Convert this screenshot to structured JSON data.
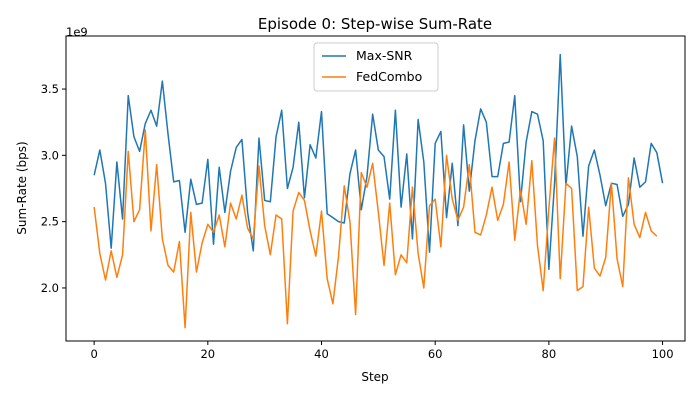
{
  "chart_data": {
    "type": "line",
    "title": "Episode 0: Step-wise Sum-Rate",
    "xlabel": "Step",
    "ylabel": "Sum-Rate (bps)",
    "y_multiplier_label": "1e9",
    "xlim": [
      -4.95,
      103.95
    ],
    "ylim": [
      1.6,
      3.9
    ],
    "x_ticks": [
      0,
      20,
      40,
      60,
      80,
      100
    ],
    "x_tick_labels": [
      "0",
      "20",
      "40",
      "60",
      "80",
      "100"
    ],
    "y_ticks": [
      2.0,
      2.5,
      3.0,
      3.5
    ],
    "y_tick_labels": [
      "2.0",
      "2.5",
      "3.0",
      "3.5"
    ],
    "grid": false,
    "legend_position": "top-center",
    "series": [
      {
        "name": "Max-SNR",
        "color": "#1f77b4",
        "values": [
          2.85,
          3.04,
          2.79,
          2.3,
          2.95,
          2.52,
          3.45,
          3.14,
          3.03,
          3.24,
          3.34,
          3.22,
          3.56,
          3.16,
          2.8,
          2.81,
          2.42,
          2.82,
          2.63,
          2.64,
          2.97,
          2.33,
          2.91,
          2.57,
          2.88,
          3.06,
          3.12,
          2.57,
          2.28,
          3.13,
          2.66,
          2.65,
          3.14,
          3.34,
          2.75,
          2.91,
          3.25,
          2.68,
          3.08,
          2.98,
          3.33,
          2.56,
          2.53,
          2.5,
          2.49,
          2.86,
          3.04,
          2.59,
          2.84,
          3.31,
          3.04,
          2.99,
          2.67,
          3.34,
          2.61,
          3.01,
          2.37,
          3.27,
          2.95,
          2.27,
          3.09,
          3.18,
          2.53,
          2.94,
          2.47,
          3.23,
          2.73,
          3.11,
          3.35,
          3.25,
          2.84,
          2.84,
          3.09,
          3.1,
          3.45,
          2.65,
          3.1,
          3.33,
          3.31,
          3.11,
          2.14,
          2.79,
          3.76,
          2.77,
          3.22,
          2.99,
          2.39,
          2.92,
          3.04,
          2.85,
          2.62,
          2.79,
          2.78,
          2.54,
          2.63,
          2.98,
          2.76,
          2.8,
          3.09,
          3.02,
          2.79
        ]
      },
      {
        "name": "FedCombo",
        "color": "#ff7f0e",
        "values": [
          2.61,
          2.26,
          2.06,
          2.28,
          2.08,
          2.25,
          3.03,
          2.5,
          2.59,
          3.19,
          2.43,
          2.93,
          2.37,
          2.17,
          2.12,
          2.35,
          1.7,
          2.57,
          2.12,
          2.34,
          2.48,
          2.42,
          2.55,
          2.31,
          2.64,
          2.52,
          2.7,
          2.45,
          2.37,
          2.92,
          2.47,
          2.25,
          2.55,
          2.52,
          1.73,
          2.58,
          2.72,
          2.66,
          2.43,
          2.24,
          2.58,
          2.07,
          1.88,
          2.24,
          2.77,
          2.5,
          1.8,
          2.87,
          2.76,
          2.94,
          2.57,
          2.17,
          2.64,
          2.1,
          2.25,
          2.19,
          2.76,
          2.26,
          2.0,
          2.62,
          2.67,
          2.31,
          3.0,
          2.67,
          2.51,
          2.61,
          2.93,
          2.42,
          2.4,
          2.55,
          2.76,
          2.51,
          2.63,
          2.95,
          2.36,
          2.74,
          2.48,
          2.96,
          2.32,
          1.98,
          2.6,
          3.13,
          2.07,
          2.79,
          2.75,
          1.98,
          2.01,
          2.61,
          2.15,
          2.09,
          2.23,
          2.79,
          2.22,
          2.01,
          2.83,
          2.48,
          2.38,
          2.57,
          2.43,
          2.39
        ]
      }
    ]
  }
}
